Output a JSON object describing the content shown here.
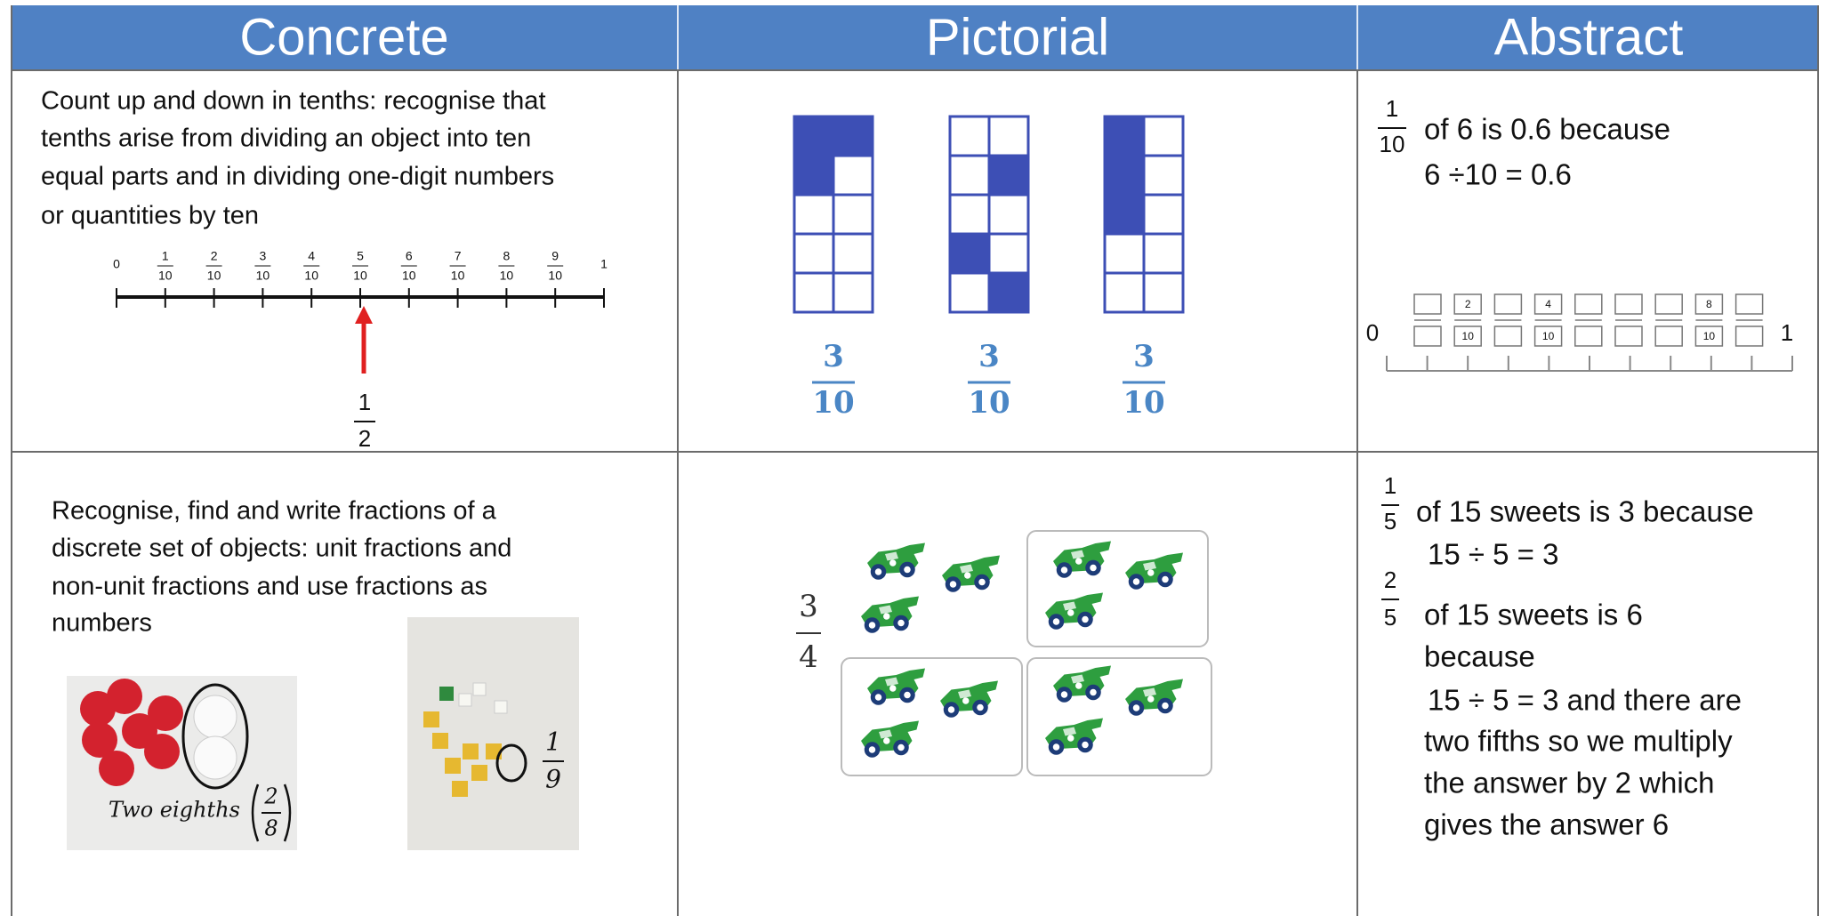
{
  "table": {
    "headers": [
      "Concrete",
      "Pictorial",
      "Abstract"
    ],
    "rows": [
      {
        "concrete": {
          "lines": [
            "Count up and down in tenths: recognise that",
            "tenths arise from dividing an object into ten",
            "equal parts and in dividing one-digit numbers",
            "or quantities by ten"
          ],
          "number_line": {
            "start": "0",
            "end": "1",
            "ticks": [
              {
                "numerator": "1",
                "denominator": "10"
              },
              {
                "numerator": "2",
                "denominator": "10"
              },
              {
                "numerator": "3",
                "denominator": "10"
              },
              {
                "numerator": "4",
                "denominator": "10"
              },
              {
                "numerator": "5",
                "denominator": "10"
              },
              {
                "numerator": "6",
                "denominator": "10"
              },
              {
                "numerator": "7",
                "denominator": "10"
              },
              {
                "numerator": "8",
                "denominator": "10"
              },
              {
                "numerator": "9",
                "denominator": "10"
              }
            ],
            "marked": {
              "numerator": "1",
              "denominator": "2"
            }
          }
        },
        "pictorial": {
          "fractions": [
            {
              "numerator": "3",
              "denominator": "10"
            },
            {
              "numerator": "3",
              "denominator": "10"
            },
            {
              "numerator": "3",
              "denominator": "10"
            }
          ]
        },
        "abstract": {
          "fraction": {
            "numerator": "1",
            "denominator": "10"
          },
          "lines": [
            "of 6 is 0.6 because",
            "6 ÷10 =  0.6"
          ],
          "number_line": {
            "start": "0",
            "end": "1",
            "filled_boxes": [
              {
                "numerator": "2",
                "denominator": "10"
              },
              {
                "numerator": "4",
                "denominator": "10"
              },
              {
                "numerator": "8",
                "denominator": "10"
              }
            ]
          }
        }
      },
      {
        "concrete": {
          "lines": [
            "Recognise, find and write fractions of a",
            "discrete set of objects: unit fractions and",
            "non-unit fractions and use fractions as",
            "numbers"
          ],
          "photo_captions": [
            {
              "text": "Two eighths",
              "fraction": {
                "numerator": "2",
                "denominator": "8"
              }
            },
            {
              "fraction": {
                "numerator": "1",
                "denominator": "9"
              }
            }
          ]
        },
        "pictorial": {
          "fraction": {
            "numerator": "3",
            "denominator": "4"
          }
        },
        "abstract": {
          "items": [
            {
              "fraction": {
                "numerator": "1",
                "denominator": "5"
              },
              "lines": [
                "of 15 sweets is 3 because",
                "15 ÷ 5 = 3"
              ]
            },
            {
              "fraction": {
                "numerator": "2",
                "denominator": "5"
              },
              "lines": [
                "of 15 sweets is 6",
                "because",
                "15 ÷ 5 = 3 and there are",
                "two fifths so we multiply",
                "the answer by 2 which",
                "gives the answer 6"
              ]
            }
          ]
        }
      }
    ]
  }
}
